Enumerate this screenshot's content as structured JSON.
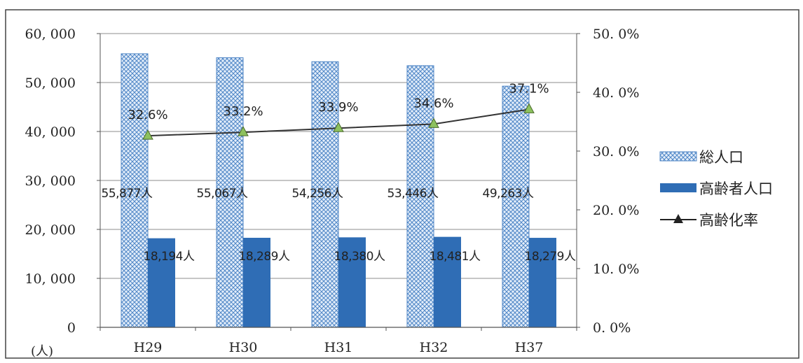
{
  "chart_data": {
    "type": "bar",
    "categories": [
      "H29",
      "H30",
      "H31",
      "H32",
      "H37"
    ],
    "series": [
      {
        "name": "総人口",
        "kind": "bar",
        "axis": "left",
        "pattern": "crosshatch",
        "color": "#4f86c6",
        "values": [
          55877,
          55067,
          54256,
          53446,
          49263
        ],
        "labels": [
          "55,877人",
          "55,067人",
          "54,256人",
          "53,446人",
          "49,263人"
        ]
      },
      {
        "name": "高齢者人口",
        "kind": "bar",
        "axis": "left",
        "color": "#2f6db5",
        "values": [
          18194,
          18289,
          18380,
          18481,
          18279
        ],
        "labels": [
          "18,194人",
          "18,289人",
          "18,380人",
          "18,481人",
          "18,279人"
        ]
      },
      {
        "name": "高齢化率",
        "kind": "line",
        "axis": "right",
        "color": "#333333",
        "marker": "triangle",
        "marker_color": "#8dc15e",
        "values": [
          32.6,
          33.2,
          33.9,
          34.6,
          37.1
        ],
        "labels": [
          "32.6%",
          "33.2%",
          "33.9%",
          "34.6%",
          "37.1%"
        ]
      }
    ],
    "y_left": {
      "ylim": [
        0,
        60000
      ],
      "ticks": [
        0,
        10000,
        20000,
        30000,
        40000,
        50000,
        60000
      ],
      "tick_labels": [
        "0",
        "10, 000",
        "20, 000",
        "30, 000",
        "40, 000",
        "50, 000",
        "60, 000"
      ],
      "unit_label": "(人)"
    },
    "y_right": {
      "ylim": [
        0,
        50
      ],
      "ticks": [
        0,
        10,
        20,
        30,
        40,
        50
      ],
      "tick_labels": [
        "0. 0%",
        "10. 0%",
        "20. 0%",
        "30. 0%",
        "40. 0%",
        "50. 0%"
      ]
    },
    "grid": true,
    "legend_position": "right"
  }
}
